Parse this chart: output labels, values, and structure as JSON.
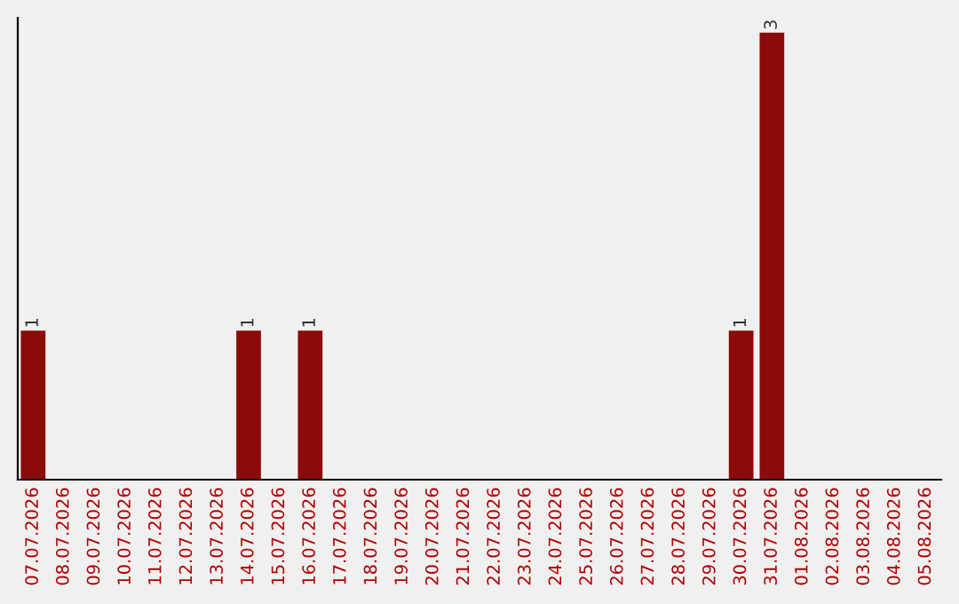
{
  "chart_data": {
    "type": "bar",
    "categories": [
      "07.07.2026",
      "08.07.2026",
      "09.07.2026",
      "10.07.2026",
      "11.07.2026",
      "12.07.2026",
      "13.07.2026",
      "14.07.2026",
      "15.07.2026",
      "16.07.2026",
      "17.07.2026",
      "18.07.2026",
      "19.07.2026",
      "20.07.2026",
      "21.07.2026",
      "22.07.2026",
      "23.07.2026",
      "24.07.2026",
      "25.07.2026",
      "26.07.2026",
      "27.07.2026",
      "28.07.2026",
      "29.07.2026",
      "30.07.2026",
      "31.07.2026",
      "01.08.2026",
      "02.08.2026",
      "03.08.2026",
      "04.08.2026",
      "05.08.2026"
    ],
    "values": [
      1,
      0,
      0,
      0,
      0,
      0,
      0,
      1,
      0,
      1,
      0,
      0,
      0,
      0,
      0,
      0,
      0,
      0,
      0,
      0,
      0,
      0,
      0,
      1,
      3,
      0,
      0,
      0,
      0,
      0
    ],
    "value_labels": [
      "1",
      null,
      null,
      null,
      null,
      null,
      null,
      "1",
      null,
      "1",
      null,
      null,
      null,
      null,
      null,
      null,
      null,
      null,
      null,
      null,
      null,
      null,
      null,
      "1",
      "3",
      null,
      null,
      null,
      null,
      null
    ],
    "color": "#8b0a0a",
    "ylim": [
      0,
      3.1
    ],
    "grid": false,
    "legend": false
  }
}
